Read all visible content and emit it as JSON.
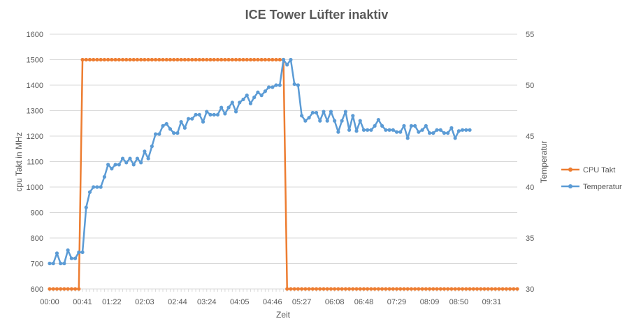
{
  "chart_data": {
    "type": "line",
    "title": "ICE Tower Lüfter inaktiv",
    "xlabel": "Zeit",
    "ylabel": "cpu Takt in MHz",
    "y2label": "Temperatur",
    "ylim": [
      600,
      1600
    ],
    "y2lim": [
      30,
      55
    ],
    "yticks": [
      600,
      700,
      800,
      900,
      1000,
      1100,
      1200,
      1300,
      1400,
      1500,
      1600
    ],
    "y2ticks": [
      30,
      35,
      40,
      45,
      50,
      55
    ],
    "xtick_labels": [
      "00:00",
      "00:41",
      "01:22",
      "02:03",
      "02:44",
      "03:24",
      "04:05",
      "04:46",
      "05:27",
      "06:08",
      "06:48",
      "07:29",
      "08:09",
      "08:50",
      "09:31"
    ],
    "grid": true,
    "legend_position": "right",
    "series": [
      {
        "name": "CPU Takt",
        "axis": "left",
        "color": "#ED7D31",
        "values": [
          600,
          600,
          600,
          600,
          600,
          600,
          600,
          600,
          600,
          1500,
          1500,
          1500,
          1500,
          1500,
          1500,
          1500,
          1500,
          1500,
          1500,
          1500,
          1500,
          1500,
          1500,
          1500,
          1500,
          1500,
          1500,
          1500,
          1500,
          1500,
          1500,
          1500,
          1500,
          1500,
          1500,
          1500,
          1500,
          1500,
          1500,
          1500,
          1500,
          1500,
          1500,
          1500,
          1500,
          1500,
          1500,
          1500,
          1500,
          1500,
          1500,
          1500,
          1500,
          1500,
          1500,
          1500,
          1500,
          1500,
          1500,
          1500,
          1500,
          1500,
          1500,
          1500,
          1500,
          600,
          600,
          600,
          600,
          600,
          600,
          600,
          600,
          600,
          600,
          600,
          600,
          600,
          600,
          600,
          600,
          600,
          600,
          600,
          600,
          600,
          600,
          600,
          600,
          600,
          600,
          600,
          600,
          600,
          600,
          600,
          600,
          600,
          600,
          600,
          600,
          600,
          600,
          600,
          600,
          600,
          600,
          600,
          600,
          600,
          600,
          600,
          600,
          600,
          600,
          600,
          600,
          600,
          600,
          600,
          600,
          600,
          600,
          600,
          600,
          600,
          600,
          600,
          600
        ]
      },
      {
        "name": "Temperatur",
        "axis": "right",
        "color": "#5B9BD5",
        "values": [
          32.5,
          32.5,
          33.5,
          32.5,
          32.5,
          33.8,
          33,
          33,
          33.6,
          33.6,
          38,
          39.5,
          40,
          40,
          40,
          41,
          42.2,
          41.8,
          42.2,
          42.2,
          42.8,
          42.4,
          42.8,
          42.2,
          42.8,
          42.4,
          43.5,
          42.8,
          44,
          45.2,
          45.2,
          46,
          46.2,
          45.7,
          45.3,
          45.3,
          46.4,
          45.8,
          46.7,
          46.7,
          47.1,
          47.1,
          46.4,
          47.4,
          47.1,
          47.1,
          47.1,
          47.8,
          47.2,
          47.8,
          48.3,
          47.4,
          48.3,
          48.6,
          49,
          48.2,
          48.8,
          49.3,
          49,
          49.4,
          49.8,
          49.8,
          50,
          50,
          52.5,
          52,
          52.5,
          50.1,
          50,
          47,
          46.5,
          46.8,
          47.3,
          47.3,
          46.5,
          47.4,
          46.5,
          47.4,
          46.5,
          45.4,
          46.5,
          47.4,
          45.6,
          47,
          45.5,
          46.5,
          45.6,
          45.6,
          45.6,
          46,
          46.6,
          46,
          45.6,
          45.6,
          45.6,
          45.4,
          45.4,
          46,
          44.8,
          46,
          46,
          45.4,
          45.6,
          46,
          45.3,
          45.3,
          45.6,
          45.6,
          45.3,
          45.3,
          45.8,
          44.8,
          45.5,
          45.6,
          45.6,
          45.6
        ]
      }
    ]
  }
}
